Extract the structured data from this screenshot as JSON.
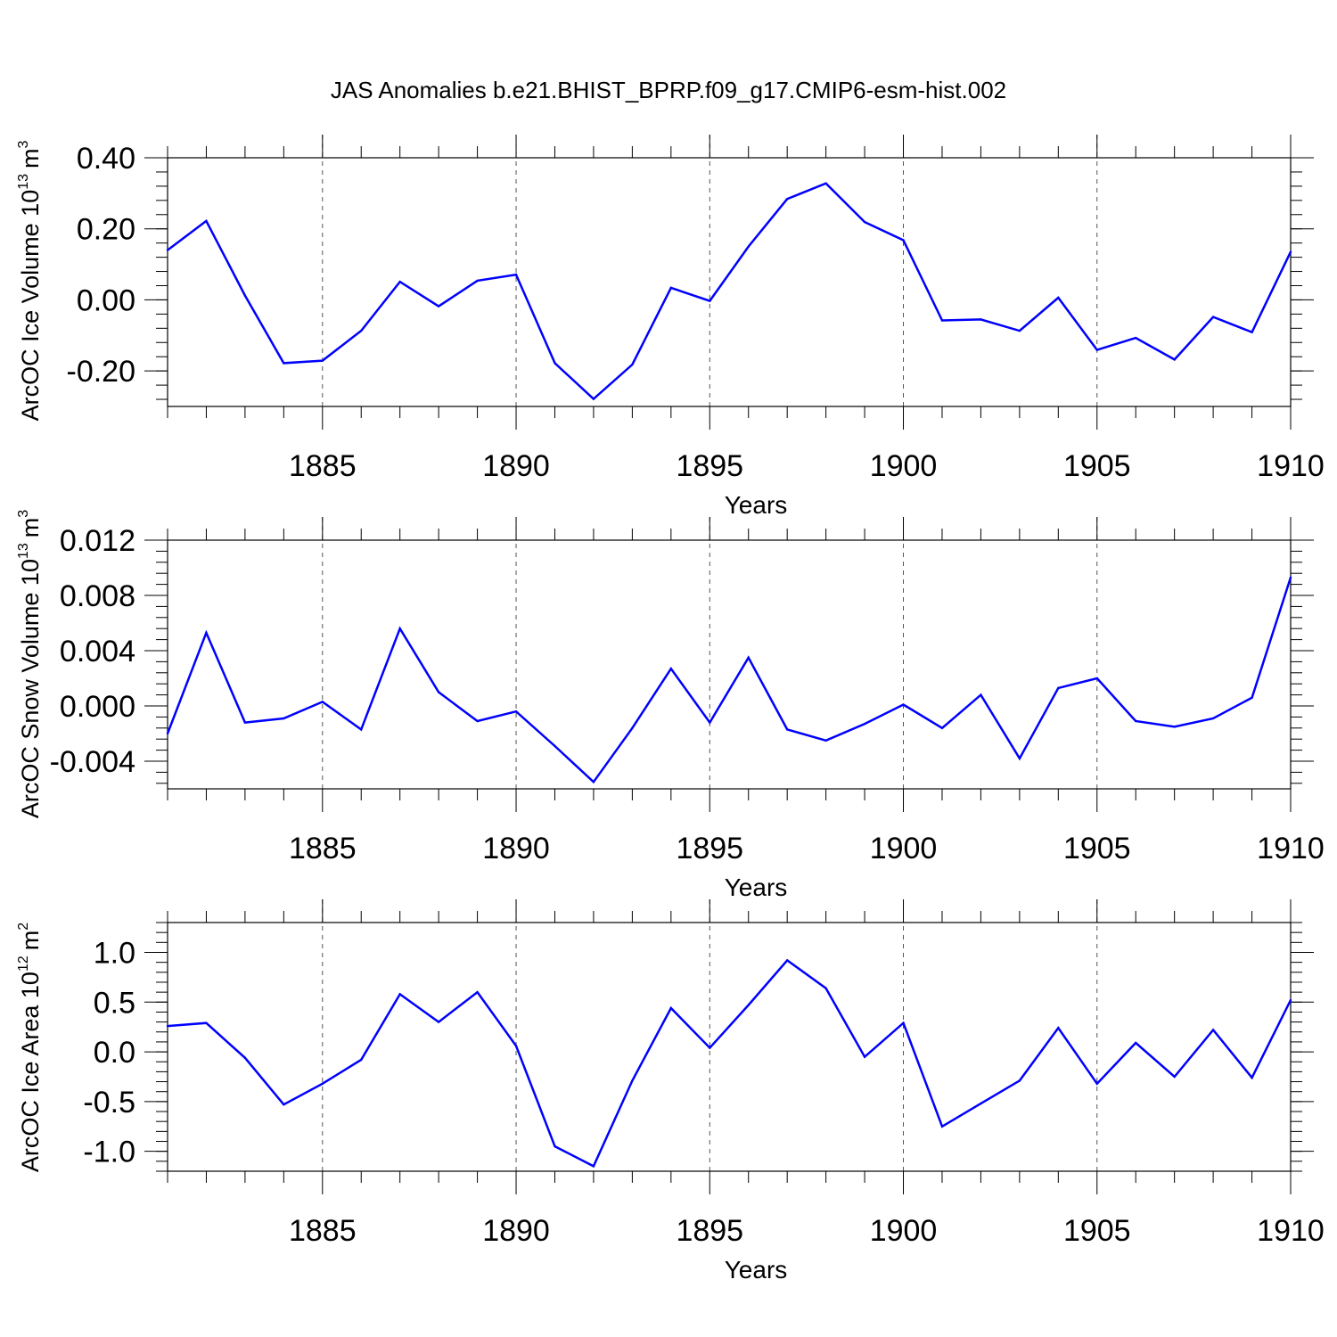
{
  "title": "JAS Anomalies b.e21.BHIST_BPRP.f09_g17.CMIP6-esm-hist.002",
  "colors": {
    "line": "#0000ff",
    "axis": "#000000",
    "grid": "#555555"
  },
  "chart_data": [
    {
      "type": "line",
      "ylabel_main": "ArcOC Ice Volume 10",
      "ylabel_exp": "13",
      "ylabel_unit": "m",
      "ylabel_unit_exp": "3",
      "xlabel": "Years",
      "xlim": [
        1881,
        1910
      ],
      "ylim": [
        -0.3,
        0.4
      ],
      "yticks": [
        -0.2,
        0.0,
        0.2,
        0.4
      ],
      "ytick_labels": [
        "-0.20",
        "0.00",
        "0.20",
        "0.40"
      ],
      "yminor": 0.04,
      "xticks": [
        1885,
        1890,
        1895,
        1900,
        1905,
        1910
      ],
      "xtick_labels": [
        "1885",
        "1890",
        "1895",
        "1900",
        "1905",
        "1910"
      ],
      "grid_x": [
        1885,
        1890,
        1895,
        1900,
        1905
      ],
      "x": [
        1881,
        1882,
        1883,
        1884,
        1885,
        1886,
        1887,
        1888,
        1889,
        1890,
        1891,
        1892,
        1893,
        1894,
        1895,
        1896,
        1897,
        1898,
        1899,
        1900,
        1901,
        1902,
        1903,
        1904,
        1905,
        1906,
        1907,
        1908,
        1909,
        1910
      ],
      "values": [
        0.14,
        0.222,
        0.012,
        -0.178,
        -0.171,
        -0.087,
        0.051,
        -0.018,
        0.054,
        0.071,
        -0.178,
        -0.279,
        -0.182,
        0.034,
        -0.003,
        0.15,
        0.284,
        0.328,
        0.219,
        0.168,
        -0.058,
        -0.055,
        -0.087,
        0.006,
        -0.141,
        -0.107,
        -0.168,
        -0.048,
        -0.091,
        0.135
      ]
    },
    {
      "type": "line",
      "ylabel_main": "ArcOC Snow Volume 10",
      "ylabel_exp": "13",
      "ylabel_unit": "m",
      "ylabel_unit_exp": "3",
      "xlabel": "Years",
      "xlim": [
        1881,
        1910
      ],
      "ylim": [
        -0.006,
        0.012
      ],
      "yticks": [
        -0.004,
        0.0,
        0.004,
        0.008,
        0.012
      ],
      "ytick_labels": [
        "-0.004",
        "0.000",
        "0.004",
        "0.008",
        "0.012"
      ],
      "yminor": 0.0008,
      "xticks": [
        1885,
        1890,
        1895,
        1900,
        1905,
        1910
      ],
      "xtick_labels": [
        "1885",
        "1890",
        "1895",
        "1900",
        "1905",
        "1910"
      ],
      "grid_x": [
        1885,
        1890,
        1895,
        1900,
        1905
      ],
      "x": [
        1881,
        1882,
        1883,
        1884,
        1885,
        1886,
        1887,
        1888,
        1889,
        1890,
        1891,
        1892,
        1893,
        1894,
        1895,
        1896,
        1897,
        1898,
        1899,
        1900,
        1901,
        1902,
        1903,
        1904,
        1905,
        1906,
        1907,
        1908,
        1909,
        1910
      ],
      "values": [
        -0.002,
        0.0053,
        -0.0012,
        -0.0009,
        0.0003,
        -0.0017,
        0.0056,
        0.001,
        -0.0011,
        -0.0004,
        -0.0029,
        -0.0055,
        -0.0016,
        0.0027,
        -0.0012,
        0.0035,
        -0.0017,
        -0.0025,
        -0.0013,
        0.0001,
        -0.0016,
        0.0008,
        -0.0038,
        0.0013,
        0.002,
        -0.0011,
        -0.0015,
        -0.0009,
        0.0006,
        0.0093
      ]
    },
    {
      "type": "line",
      "ylabel_main": "ArcOC Ice Area 10",
      "ylabel_exp": "12",
      "ylabel_unit": "m",
      "ylabel_unit_exp": "2",
      "xlabel": "Years",
      "xlim": [
        1881,
        1910
      ],
      "ylim": [
        -1.2,
        1.3
      ],
      "yticks": [
        -1.0,
        -0.5,
        0.0,
        0.5,
        1.0
      ],
      "ytick_labels": [
        "-1.0",
        "-0.5",
        "0.0",
        "0.5",
        "1.0"
      ],
      "yminor": 0.1,
      "xticks": [
        1885,
        1890,
        1895,
        1900,
        1905,
        1910
      ],
      "xtick_labels": [
        "1885",
        "1890",
        "1895",
        "1900",
        "1905",
        "1910"
      ],
      "grid_x": [
        1885,
        1890,
        1895,
        1900,
        1905
      ],
      "x": [
        1881,
        1882,
        1883,
        1884,
        1885,
        1886,
        1887,
        1888,
        1889,
        1890,
        1891,
        1892,
        1893,
        1894,
        1895,
        1896,
        1897,
        1898,
        1899,
        1900,
        1901,
        1902,
        1903,
        1904,
        1905,
        1906,
        1907,
        1908,
        1909,
        1910
      ],
      "values": [
        0.26,
        0.29,
        -0.06,
        -0.53,
        -0.32,
        -0.08,
        0.58,
        0.3,
        0.6,
        0.06,
        -0.95,
        -1.15,
        -0.29,
        0.44,
        0.04,
        0.47,
        0.92,
        0.64,
        -0.05,
        0.29,
        -0.75,
        -0.52,
        -0.29,
        0.24,
        -0.32,
        0.09,
        -0.25,
        0.22,
        -0.26,
        0.52
      ]
    }
  ]
}
